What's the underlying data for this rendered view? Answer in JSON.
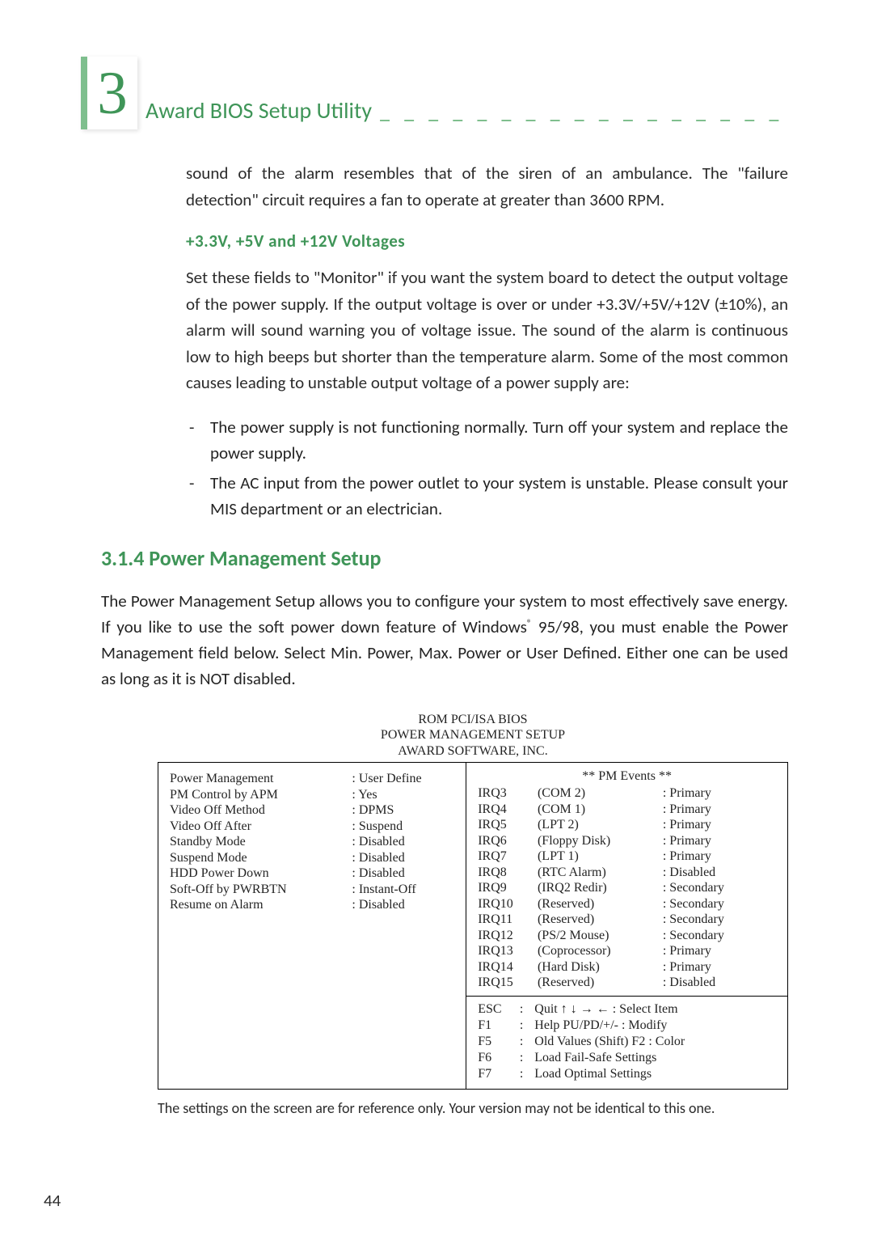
{
  "chapter_number": "3",
  "chapter_title": "Award BIOS Setup Utility",
  "page_number": "44",
  "body": {
    "para1": "sound of the alarm resembles that of the siren of an ambulance. The \"failure detection\" circuit requires a fan to operate at greater than 3600 RPM.",
    "voltage_heading": "+3.3V, +5V and +12V Voltages",
    "para2": "Set these fields to \"Monitor\" if you want the system board to detect the output voltage of the power supply. If the output voltage is over or under +3.3V/+5V/+12V (±10%), an alarm will sound warning you of voltage issue. The sound of the alarm is continuous low to high beeps but shorter than the temperature alarm. Some of the most common causes leading to unstable output voltage of a power supply are:",
    "bullet1": "The power supply is not functioning normally. Turn off your system and replace the power supply.",
    "bullet2": "The AC input from the power outlet to your system is unstable. Please consult your MIS department or an electrician."
  },
  "section": {
    "title": "3.1.4 Power Management Setup",
    "para_pre": "The Power Management Setup allows you to configure your system to most effectively save energy.  If you like to use the soft power down feature of Windows",
    "reg": "®",
    "para_post": " 95/98, you must enable the Power Management field below. Select Min. Power, Max. Power or User Defined. Either one can be used as long as it is NOT disabled."
  },
  "bios": {
    "header1": "ROM PCI/ISA BIOS",
    "header2": "POWER MANAGEMENT SETUP",
    "header3": "AWARD SOFTWARE, INC.",
    "left": [
      {
        "label": "Power Management",
        "value": ": User Define"
      },
      {
        "label": "PM Control by APM",
        "value": ": Yes"
      },
      {
        "label": "Video Off Method",
        "value": ": DPMS"
      },
      {
        "label": "Video Off After",
        "value": ": Suspend"
      },
      {
        "label": "Standby Mode",
        "value": ": Disabled"
      },
      {
        "label": "Suspend Mode",
        "value": ": Disabled"
      },
      {
        "label": "HDD Power Down",
        "value": ": Disabled"
      },
      {
        "label": "Soft-Off by PWRBTN",
        "value": ": Instant-Off"
      },
      {
        "label": "Resume on Alarm",
        "value": ": Disabled"
      }
    ],
    "events_title": "** PM Events **",
    "right": [
      {
        "irq": "IRQ3",
        "desc": "(COM 2)",
        "val": ": Primary"
      },
      {
        "irq": "IRQ4",
        "desc": "(COM 1)",
        "val": ": Primary"
      },
      {
        "irq": "IRQ5",
        "desc": "(LPT 2)",
        "val": ": Primary"
      },
      {
        "irq": "IRQ6",
        "desc": "(Floppy Disk)",
        "val": ": Primary"
      },
      {
        "irq": "IRQ7",
        "desc": "(LPT 1)",
        "val": ": Primary"
      },
      {
        "irq": "IRQ8",
        "desc": "(RTC Alarm)",
        "val": ": Disabled"
      },
      {
        "irq": "IRQ9",
        "desc": "(IRQ2 Redir)",
        "val": ": Secondary"
      },
      {
        "irq": "IRQ10",
        "desc": "(Reserved)",
        "val": ": Secondary"
      },
      {
        "irq": "IRQ11",
        "desc": "(Reserved)",
        "val": ": Secondary"
      },
      {
        "irq": "IRQ12",
        "desc": "(PS/2 Mouse)",
        "val": ": Secondary"
      },
      {
        "irq": "IRQ13",
        "desc": "(Coprocessor)",
        "val": ": Primary"
      },
      {
        "irq": "IRQ14",
        "desc": "(Hard Disk)",
        "val": ": Primary"
      },
      {
        "irq": "IRQ15",
        "desc": "(Reserved)",
        "val": ": Disabled"
      }
    ],
    "help": [
      {
        "key": "ESC",
        "desc": "Quit            ↑ ↓ → ←  : Select Item"
      },
      {
        "key": "F1",
        "desc": "Help           PU/PD/+/-  : Modify"
      },
      {
        "key": "F5",
        "desc": "Old Values  (Shift) F2   : Color"
      },
      {
        "key": "F6",
        "desc": "Load Fail-Safe Settings"
      },
      {
        "key": "F7",
        "desc": "Load Optimal Settings"
      }
    ],
    "caption": "The settings on the screen are for reference only. Your version may not be identical to this one."
  }
}
